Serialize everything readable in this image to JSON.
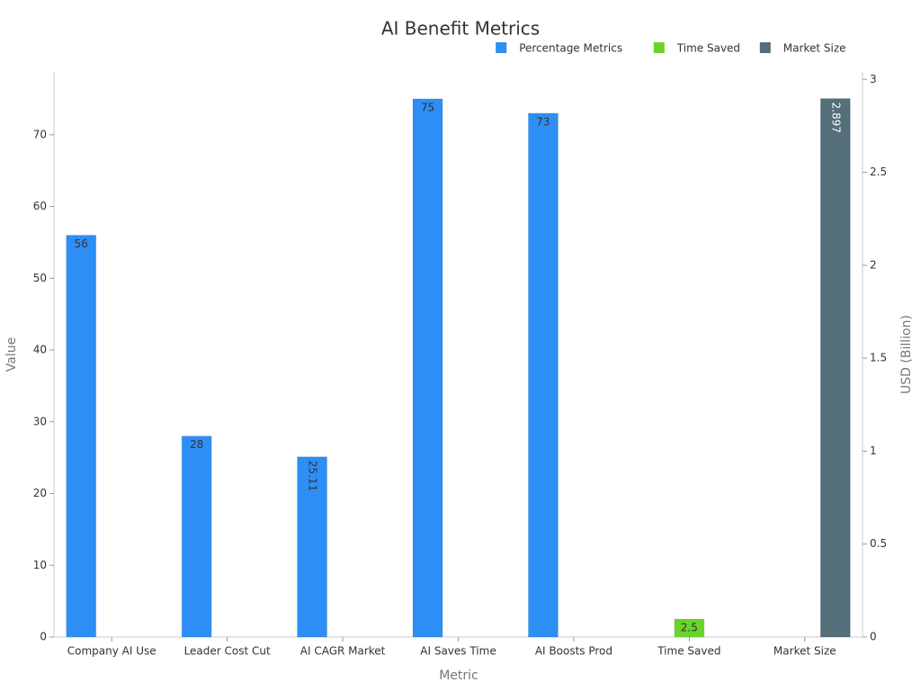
{
  "chart_data": {
    "type": "bar",
    "title": "AI Benefit Metrics",
    "x_label": "Metric",
    "y_label": "Value",
    "y2_label": "USD (Billion)",
    "categories": [
      "Company AI Use",
      "Leader Cost Cut",
      "AI CAGR Market",
      "AI Saves Time",
      "AI Boosts Prod",
      "Time Saved",
      "Market Size"
    ],
    "series": [
      {
        "name": "Percentage Metrics",
        "color": "#2d8ff5",
        "values": [
          56,
          28,
          25.11,
          75,
          73,
          null,
          null
        ]
      },
      {
        "name": "Time Saved",
        "color": "#6ad42a",
        "values": [
          null,
          null,
          null,
          null,
          null,
          2.5,
          null
        ]
      },
      {
        "name": "Market Size",
        "color": "#546e7a",
        "axis": "y2",
        "values": [
          null,
          null,
          null,
          null,
          null,
          null,
          2.897
        ]
      }
    ],
    "ylim": [
      0,
      78.75
    ],
    "yticks": [
      0,
      10,
      20,
      30,
      40,
      50,
      60,
      70
    ],
    "y2lim": [
      0,
      3.04
    ],
    "y2ticks": [
      0,
      0.5,
      1,
      1.5,
      2,
      2.5,
      3
    ],
    "legend": "top right",
    "grid": false
  }
}
